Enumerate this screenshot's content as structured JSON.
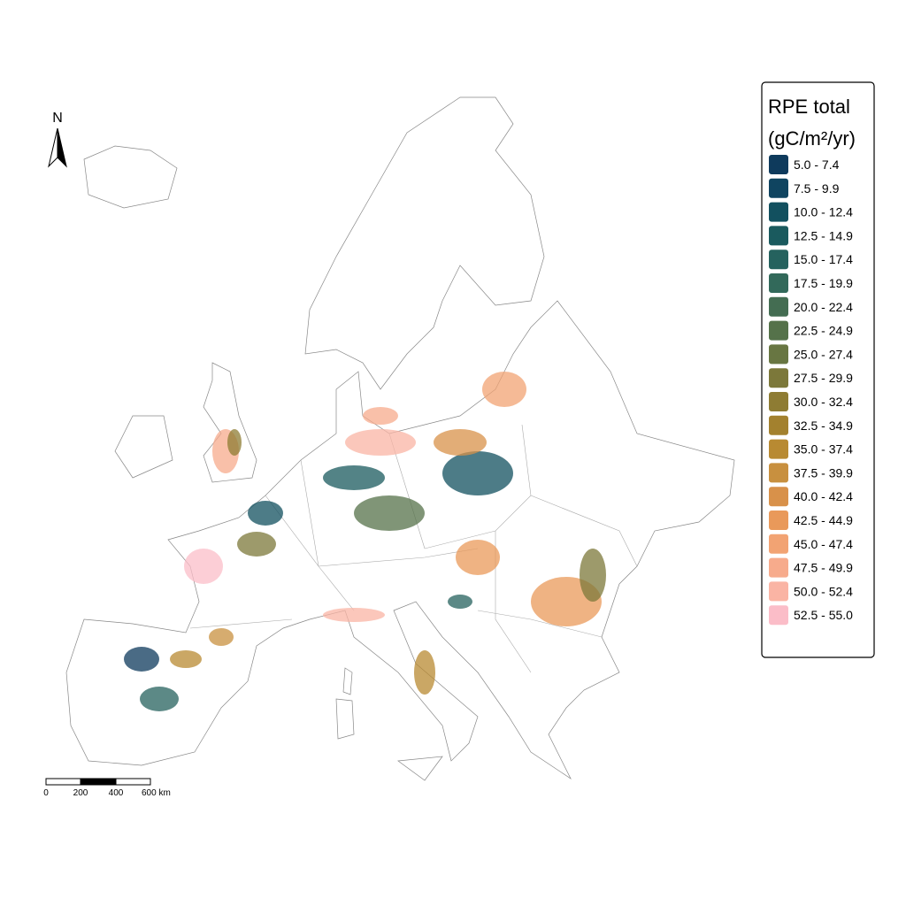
{
  "north_arrow": {
    "label": "N"
  },
  "scale_bar": {
    "labels": [
      "0",
      "200",
      "400",
      "600 km"
    ]
  },
  "legend": {
    "title": [
      "RPE total",
      "(gC/m²/yr)"
    ],
    "items": [
      {
        "label": "5.0 - 7.4",
        "color": "#0e3a5c"
      },
      {
        "label": "7.5 - 9.9",
        "color": "#0f4460"
      },
      {
        "label": "10.0 - 12.4",
        "color": "#12505f"
      },
      {
        "label": "12.5 - 14.9",
        "color": "#1a5a5e"
      },
      {
        "label": "15.0 - 17.4",
        "color": "#25625e"
      },
      {
        "label": "17.5 - 19.9",
        "color": "#32695a"
      },
      {
        "label": "20.0 - 22.4",
        "color": "#446d52"
      },
      {
        "label": "22.5 - 24.9",
        "color": "#55724a"
      },
      {
        "label": "25.0 - 27.4",
        "color": "#687642"
      },
      {
        "label": "27.5 - 29.9",
        "color": "#7c783a"
      },
      {
        "label": "30.0 - 32.4",
        "color": "#8e7c33"
      },
      {
        "label": "32.5 - 34.9",
        "color": "#a3812e"
      },
      {
        "label": "35.0 - 37.4",
        "color": "#b88a32"
      },
      {
        "label": "37.5 - 39.9",
        "color": "#c8903f"
      },
      {
        "label": "40.0 - 42.4",
        "color": "#d8914a"
      },
      {
        "label": "42.5 - 44.9",
        "color": "#e9995a"
      },
      {
        "label": "45.0 - 47.4",
        "color": "#f2a373"
      },
      {
        "label": "47.5 - 49.9",
        "color": "#f7ab8c"
      },
      {
        "label": "50.0 - 52.4",
        "color": "#fab4a4"
      },
      {
        "label": "52.5 - 55.0",
        "color": "#fbbdc8"
      }
    ]
  }
}
